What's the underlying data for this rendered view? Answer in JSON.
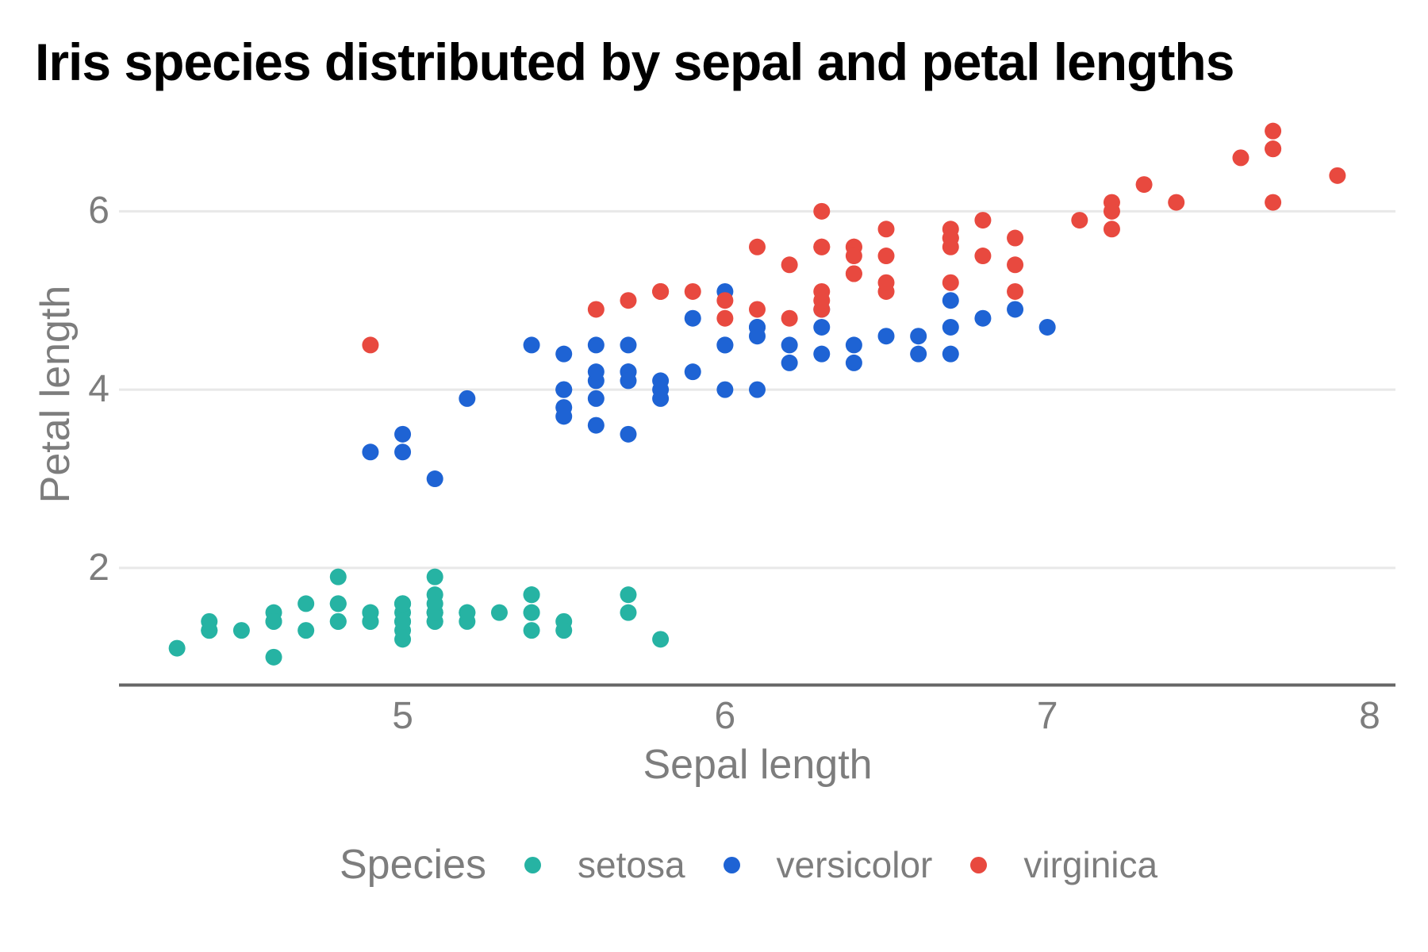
{
  "title": "Iris species distributed by sepal and petal lengths",
  "legend": {
    "title": "Species",
    "items": [
      {
        "label": "setosa",
        "color": "#26b3a3"
      },
      {
        "label": "versicolor",
        "color": "#1e63d4"
      },
      {
        "label": "virginica",
        "color": "#e8493f"
      }
    ]
  },
  "colors": {
    "setosa": "#26b3a3",
    "versicolor": "#1e63d4",
    "virginica": "#e8493f",
    "gridline": "#e8e8e8",
    "axis_line": "#666666",
    "axis_text": "#7d7d7d",
    "title_text": "#000000",
    "background": "#ffffff"
  },
  "chart_data": {
    "type": "scatter",
    "title": "Iris species distributed by sepal and petal lengths",
    "xlabel": "Sepal length",
    "ylabel": "Petal length",
    "xlim": [
      4.12,
      8.08
    ],
    "ylim": [
      0.705,
      7.195
    ],
    "x_ticks": [
      5,
      6,
      7,
      8
    ],
    "y_ticks": [
      2,
      4,
      6
    ],
    "grid": "horizontal-only",
    "legend_position": "bottom",
    "point_radius_px": 10.5,
    "series": [
      {
        "name": "setosa",
        "color": "#26b3a3",
        "points": [
          [
            5.1,
            1.4
          ],
          [
            4.9,
            1.4
          ],
          [
            4.7,
            1.3
          ],
          [
            4.6,
            1.5
          ],
          [
            5.0,
            1.4
          ],
          [
            5.4,
            1.7
          ],
          [
            4.6,
            1.4
          ],
          [
            5.0,
            1.5
          ],
          [
            4.4,
            1.4
          ],
          [
            4.9,
            1.5
          ],
          [
            5.4,
            1.5
          ],
          [
            4.8,
            1.6
          ],
          [
            4.8,
            1.4
          ],
          [
            4.3,
            1.1
          ],
          [
            5.8,
            1.2
          ],
          [
            5.7,
            1.5
          ],
          [
            5.4,
            1.3
          ],
          [
            5.1,
            1.4
          ],
          [
            5.7,
            1.7
          ],
          [
            5.1,
            1.5
          ],
          [
            5.4,
            1.7
          ],
          [
            5.1,
            1.5
          ],
          [
            4.6,
            1.0
          ],
          [
            5.1,
            1.7
          ],
          [
            4.8,
            1.9
          ],
          [
            5.0,
            1.6
          ],
          [
            5.0,
            1.6
          ],
          [
            5.2,
            1.5
          ],
          [
            5.2,
            1.4
          ],
          [
            4.7,
            1.6
          ],
          [
            4.8,
            1.6
          ],
          [
            5.4,
            1.5
          ],
          [
            5.2,
            1.5
          ],
          [
            5.5,
            1.4
          ],
          [
            4.9,
            1.5
          ],
          [
            5.0,
            1.2
          ],
          [
            5.5,
            1.3
          ],
          [
            4.9,
            1.4
          ],
          [
            4.4,
            1.3
          ],
          [
            5.1,
            1.5
          ],
          [
            5.0,
            1.3
          ],
          [
            4.5,
            1.3
          ],
          [
            4.4,
            1.3
          ],
          [
            5.0,
            1.6
          ],
          [
            5.1,
            1.9
          ],
          [
            4.8,
            1.4
          ],
          [
            5.1,
            1.6
          ],
          [
            4.6,
            1.4
          ],
          [
            5.3,
            1.5
          ],
          [
            5.0,
            1.4
          ]
        ]
      },
      {
        "name": "versicolor",
        "color": "#1e63d4",
        "points": [
          [
            7.0,
            4.7
          ],
          [
            6.4,
            4.5
          ],
          [
            6.9,
            4.9
          ],
          [
            5.5,
            4.0
          ],
          [
            6.5,
            4.6
          ],
          [
            5.7,
            4.5
          ],
          [
            6.3,
            4.7
          ],
          [
            4.9,
            3.3
          ],
          [
            6.6,
            4.6
          ],
          [
            5.2,
            3.9
          ],
          [
            5.0,
            3.5
          ],
          [
            5.9,
            4.2
          ],
          [
            6.0,
            4.0
          ],
          [
            6.1,
            4.7
          ],
          [
            5.6,
            3.6
          ],
          [
            6.7,
            4.4
          ],
          [
            5.6,
            4.5
          ],
          [
            5.8,
            4.1
          ],
          [
            6.2,
            4.5
          ],
          [
            5.6,
            3.9
          ],
          [
            5.9,
            4.8
          ],
          [
            6.1,
            4.0
          ],
          [
            6.3,
            4.9
          ],
          [
            6.1,
            4.7
          ],
          [
            6.4,
            4.3
          ],
          [
            6.6,
            4.4
          ],
          [
            6.8,
            4.8
          ],
          [
            6.7,
            5.0
          ],
          [
            6.0,
            4.5
          ],
          [
            5.7,
            3.5
          ],
          [
            5.5,
            3.8
          ],
          [
            5.5,
            3.7
          ],
          [
            5.8,
            3.9
          ],
          [
            6.0,
            5.1
          ],
          [
            5.4,
            4.5
          ],
          [
            6.0,
            4.5
          ],
          [
            6.7,
            4.7
          ],
          [
            6.3,
            4.4
          ],
          [
            5.6,
            4.1
          ],
          [
            5.5,
            4.0
          ],
          [
            5.5,
            4.4
          ],
          [
            6.1,
            4.6
          ],
          [
            5.8,
            4.0
          ],
          [
            5.0,
            3.3
          ],
          [
            5.6,
            4.2
          ],
          [
            5.7,
            4.2
          ],
          [
            5.7,
            4.2
          ],
          [
            6.2,
            4.3
          ],
          [
            5.1,
            3.0
          ],
          [
            5.7,
            4.1
          ]
        ]
      },
      {
        "name": "virginica",
        "color": "#e8493f",
        "points": [
          [
            6.3,
            6.0
          ],
          [
            5.8,
            5.1
          ],
          [
            7.1,
            5.9
          ],
          [
            6.3,
            5.6
          ],
          [
            6.5,
            5.8
          ],
          [
            7.6,
            6.6
          ],
          [
            4.9,
            4.5
          ],
          [
            7.3,
            6.3
          ],
          [
            6.7,
            5.8
          ],
          [
            7.2,
            6.1
          ],
          [
            6.5,
            5.1
          ],
          [
            6.4,
            5.3
          ],
          [
            6.8,
            5.5
          ],
          [
            5.7,
            5.0
          ],
          [
            5.8,
            5.1
          ],
          [
            6.4,
            5.3
          ],
          [
            6.5,
            5.5
          ],
          [
            7.7,
            6.7
          ],
          [
            7.7,
            6.9
          ],
          [
            6.0,
            5.0
          ],
          [
            6.9,
            5.7
          ],
          [
            5.6,
            4.9
          ],
          [
            7.7,
            6.7
          ],
          [
            6.3,
            4.9
          ],
          [
            6.7,
            5.7
          ],
          [
            7.2,
            6.0
          ],
          [
            6.2,
            4.8
          ],
          [
            6.1,
            4.9
          ],
          [
            6.4,
            5.6
          ],
          [
            7.2,
            5.8
          ],
          [
            7.4,
            6.1
          ],
          [
            7.9,
            6.4
          ],
          [
            6.4,
            5.6
          ],
          [
            6.3,
            5.1
          ],
          [
            6.1,
            5.6
          ],
          [
            7.7,
            6.1
          ],
          [
            6.3,
            5.6
          ],
          [
            6.4,
            5.5
          ],
          [
            6.0,
            4.8
          ],
          [
            6.9,
            5.4
          ],
          [
            6.7,
            5.6
          ],
          [
            6.9,
            5.1
          ],
          [
            5.8,
            5.1
          ],
          [
            6.8,
            5.9
          ],
          [
            6.7,
            5.7
          ],
          [
            6.7,
            5.2
          ],
          [
            6.3,
            5.0
          ],
          [
            6.5,
            5.2
          ],
          [
            6.2,
            5.4
          ],
          [
            5.9,
            5.1
          ]
        ]
      }
    ]
  }
}
